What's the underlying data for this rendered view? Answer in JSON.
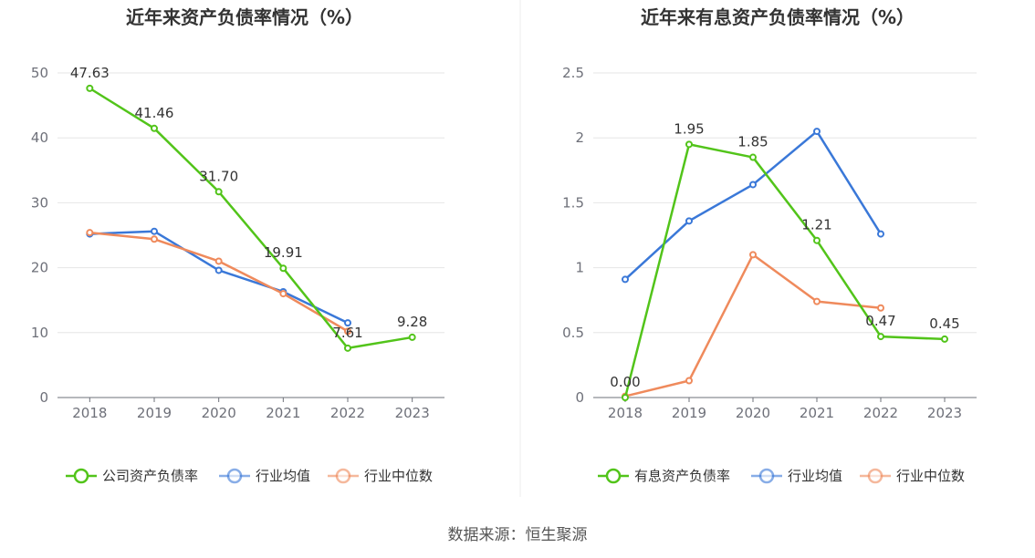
{
  "source": "数据来源：恒生聚源",
  "colors": {
    "green": "#52c41a",
    "blue": "#3a78d8",
    "orange": "#ef8a5c",
    "grid": "#e6e6e6",
    "axis": "#6e7079"
  },
  "chart_data": [
    {
      "type": "line",
      "title": "近年来资产负债率情况（%）",
      "categories": [
        "2018",
        "2019",
        "2020",
        "2021",
        "2022",
        "2023"
      ],
      "ylim": [
        0,
        50
      ],
      "yticks": [
        "0",
        "10",
        "20",
        "30",
        "40",
        "50"
      ],
      "legend_position": "bottom",
      "series": [
        {
          "name": "公司资产负债率",
          "color": "#52c41a",
          "values": [
            47.63,
            41.46,
            31.7,
            19.91,
            7.61,
            9.28
          ],
          "labels": [
            "47.63",
            "41.46",
            "31.70",
            "19.91",
            "7.61",
            "9.28"
          ]
        },
        {
          "name": "行业均值",
          "color": "#3a78d8",
          "values": [
            25.2,
            25.6,
            19.6,
            16.3,
            11.5,
            null
          ]
        },
        {
          "name": "行业中位数",
          "color": "#ef8a5c",
          "values": [
            25.4,
            24.4,
            21.0,
            16.0,
            10.2,
            null
          ]
        }
      ]
    },
    {
      "type": "line",
      "title": "近年来有息资产负债率情况（%）",
      "categories": [
        "2018",
        "2019",
        "2020",
        "2021",
        "2022",
        "2023"
      ],
      "ylim": [
        0,
        2.5
      ],
      "yticks": [
        "0",
        "0.5",
        "1",
        "1.5",
        "2",
        "2.5"
      ],
      "legend_position": "bottom",
      "series": [
        {
          "name": "有息资产负债率",
          "color": "#52c41a",
          "values": [
            0.0,
            1.95,
            1.85,
            1.21,
            0.47,
            0.45
          ],
          "labels": [
            "0.00",
            "1.95",
            "1.85",
            "1.21",
            "0.47",
            "0.45"
          ]
        },
        {
          "name": "行业均值",
          "color": "#3a78d8",
          "values": [
            0.91,
            1.36,
            1.64,
            2.05,
            1.26,
            null
          ]
        },
        {
          "name": "行业中位数",
          "color": "#ef8a5c",
          "values": [
            0.01,
            0.13,
            1.1,
            0.74,
            0.69,
            null
          ]
        }
      ]
    }
  ]
}
